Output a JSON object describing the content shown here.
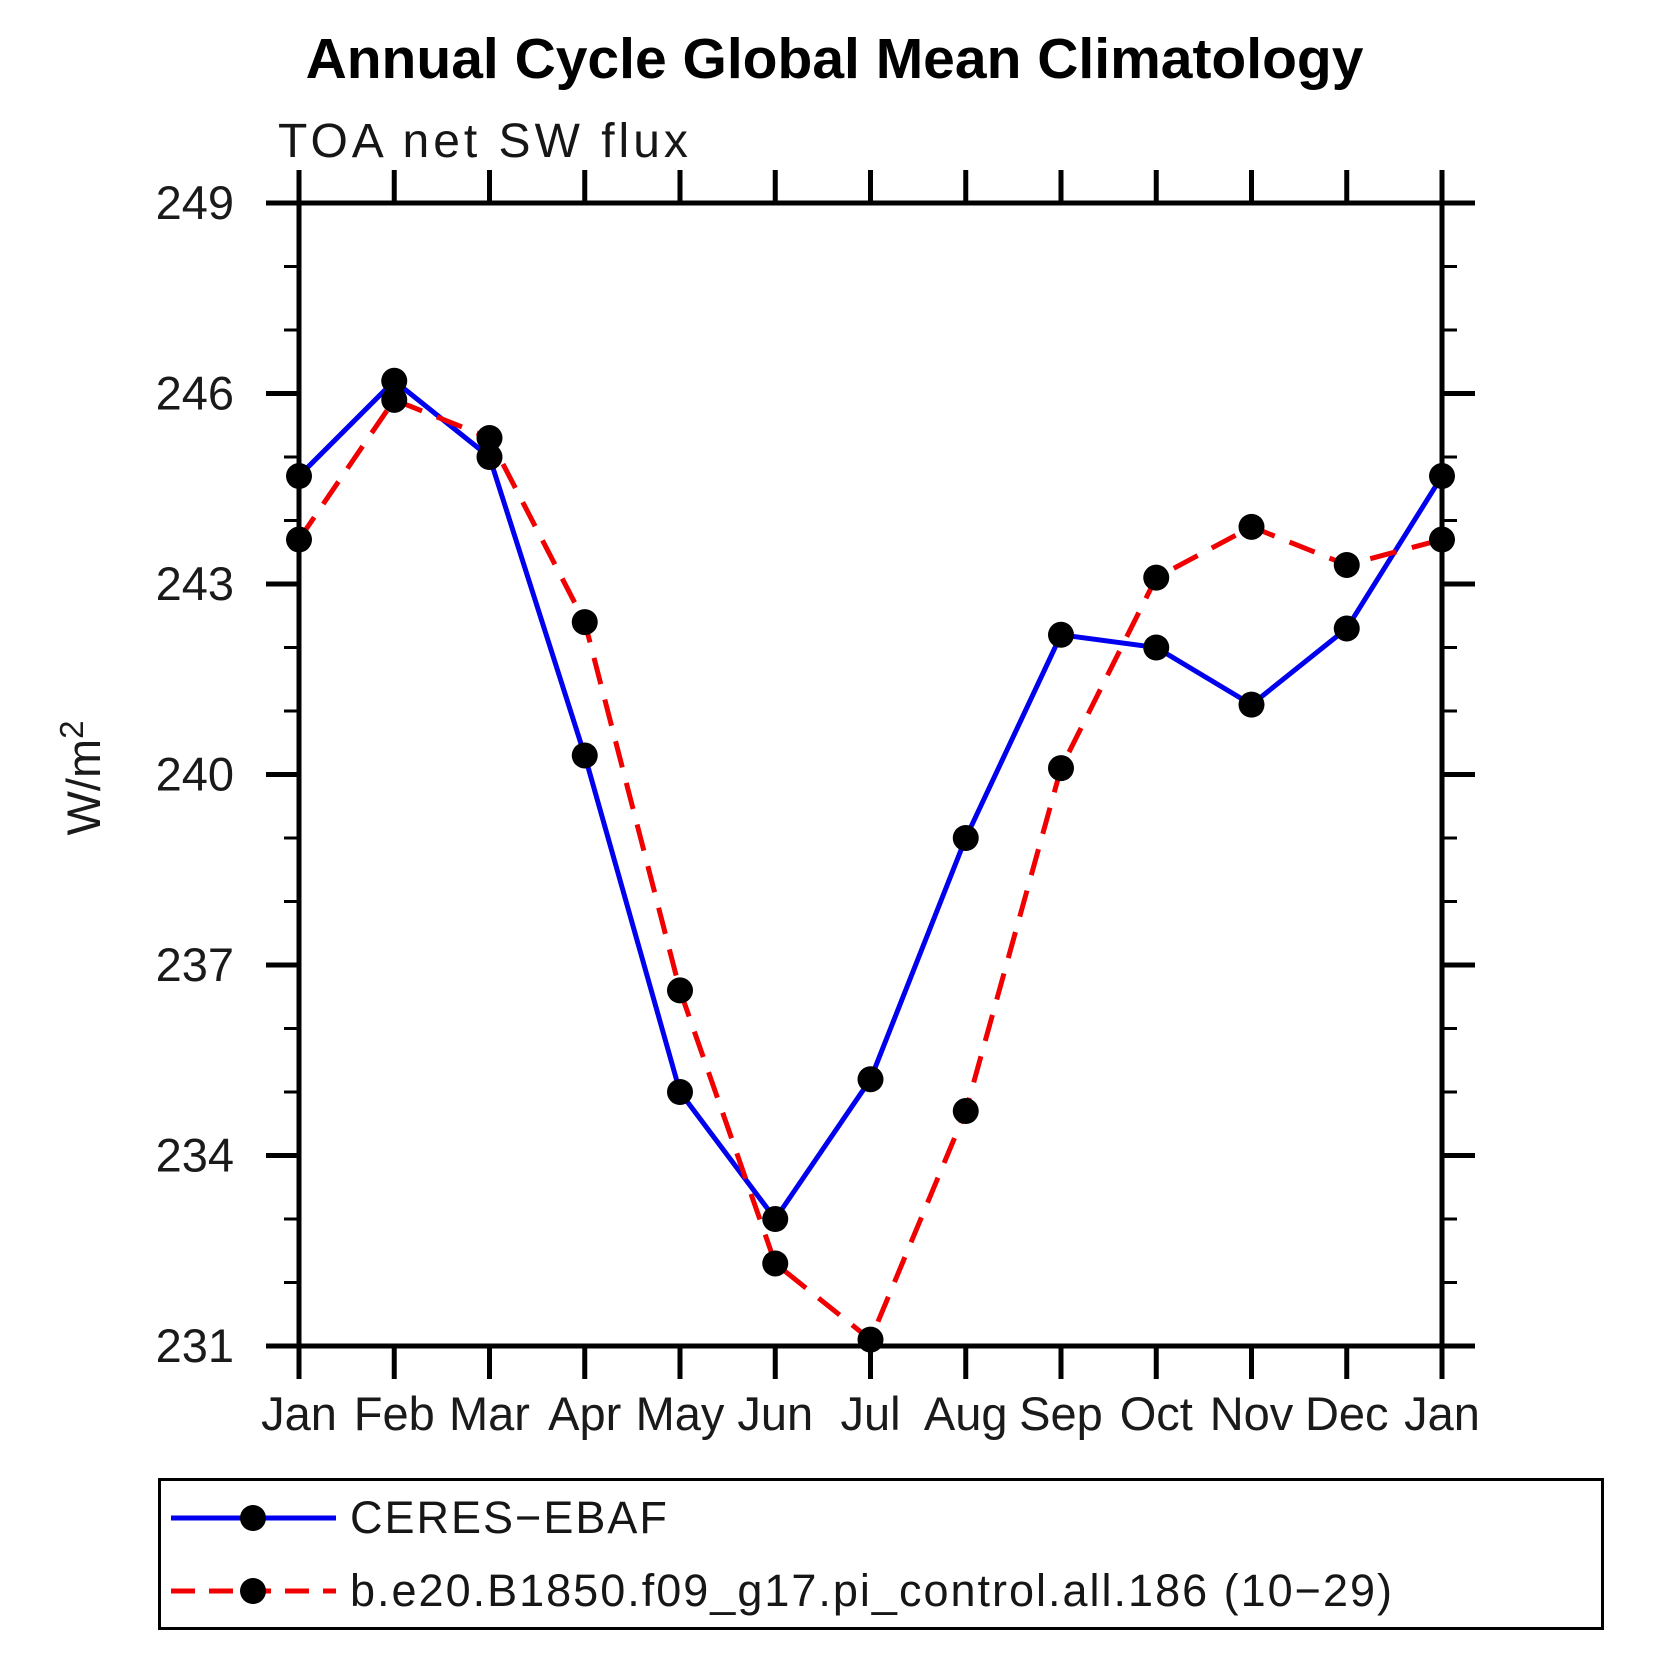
{
  "chart_data": {
    "type": "line",
    "title": "Annual Cycle Global Mean Climatology",
    "subtitle": "TOA net SW flux",
    "ylabel": {
      "base": "W/m",
      "exp": "2",
      "text": "W/m²"
    },
    "xlabel": "",
    "categories": [
      "Jan",
      "Feb",
      "Mar",
      "Apr",
      "May",
      "Jun",
      "Jul",
      "Aug",
      "Sep",
      "Oct",
      "Nov",
      "Dec",
      "Jan"
    ],
    "series": [
      {
        "name": "CERES-EBAF",
        "label": "CERES−EBAF",
        "color": "#0000ee",
        "line": "solid",
        "marker": "circle",
        "marker_color": "#000000",
        "values": [
          244.7,
          246.2,
          245.0,
          240.3,
          235.0,
          233.0,
          235.2,
          239.0,
          242.2,
          242.0,
          241.1,
          242.3,
          244.7
        ]
      },
      {
        "name": "b.e20.B1850.f09_g17.pi_control.all.186 (10-29)",
        "label": "b.e20.B1850.f09_g17.pi_control.all.186 (10−29)",
        "color": "#f00000",
        "line": "dashed",
        "marker": "circle",
        "marker_color": "#000000",
        "values": [
          243.7,
          245.9,
          245.3,
          242.4,
          236.6,
          232.3,
          231.1,
          234.7,
          240.1,
          243.1,
          243.9,
          243.3,
          243.7
        ]
      }
    ],
    "ylim": [
      231,
      249
    ],
    "y_major_step": 3,
    "y_minor_step": 1,
    "y_major_tick_labels": [
      "231",
      "234",
      "237",
      "240",
      "243",
      "246",
      "249"
    ],
    "grid": false,
    "legend_position": "bottom-left-box",
    "axis_color": "#000000",
    "background_color": "#ffffff"
  }
}
